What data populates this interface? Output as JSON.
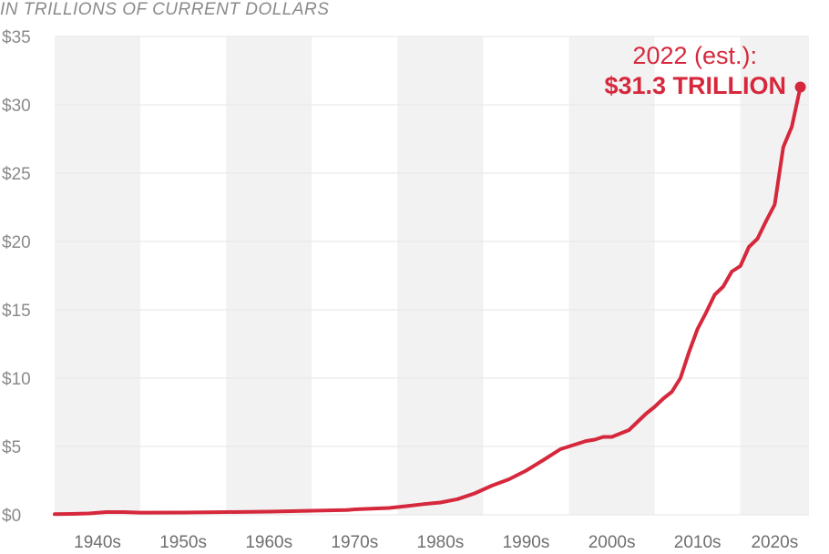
{
  "subtitle": "IN TRILLIONS OF CURRENT DOLLARS",
  "colors": {
    "line": "#d6283c",
    "band": "#f2f2f2",
    "grid": "#e6e6e6",
    "axis_text": "#8a8a8a"
  },
  "chart_data": {
    "type": "line",
    "title": "",
    "subtitle": "IN TRILLIONS OF CURRENT DOLLARS",
    "xlabel": "",
    "ylabel": "",
    "xlim": [
      1935,
      2023
    ],
    "ylim": [
      0,
      35
    ],
    "grid": true,
    "legend": "none",
    "y_ticks": [
      {
        "value": 0,
        "label": "$0"
      },
      {
        "value": 5,
        "label": "$5"
      },
      {
        "value": 10,
        "label": "$10"
      },
      {
        "value": 15,
        "label": "$15"
      },
      {
        "value": 20,
        "label": "$20"
      },
      {
        "value": 25,
        "label": "$25"
      },
      {
        "value": 30,
        "label": "$30"
      },
      {
        "value": 35,
        "label": "$35"
      }
    ],
    "decades": [
      {
        "label": "1940s",
        "start": 1935,
        "end": 1945
      },
      {
        "label": "1950s",
        "start": 1945,
        "end": 1955
      },
      {
        "label": "1960s",
        "start": 1955,
        "end": 1965
      },
      {
        "label": "1970s",
        "start": 1965,
        "end": 1975
      },
      {
        "label": "1980s",
        "start": 1975,
        "end": 1985
      },
      {
        "label": "1990s",
        "start": 1985,
        "end": 1995
      },
      {
        "label": "2000s",
        "start": 1995,
        "end": 2005
      },
      {
        "label": "2010s",
        "start": 2005,
        "end": 2015
      },
      {
        "label": "2020s",
        "start": 2015,
        "end": 2023
      }
    ],
    "x": [
      1935,
      1937,
      1939,
      1941,
      1943,
      1945,
      1950,
      1955,
      1960,
      1965,
      1969,
      1970,
      1972,
      1974,
      1976,
      1978,
      1979,
      1980,
      1982,
      1984,
      1986,
      1988,
      1990,
      1992,
      1994,
      1995,
      1996,
      1997,
      1998,
      1999,
      2000,
      2002,
      2004,
      2005,
      2006,
      2007,
      2008,
      2009,
      2010,
      2011,
      2012,
      2013,
      2014,
      2015,
      2016,
      2017,
      2018,
      2019,
      2020,
      2021,
      2022
    ],
    "values": [
      0.05,
      0.07,
      0.1,
      0.2,
      0.2,
      0.16,
      0.17,
      0.2,
      0.23,
      0.3,
      0.35,
      0.4,
      0.45,
      0.5,
      0.63,
      0.78,
      0.84,
      0.9,
      1.15,
      1.57,
      2.13,
      2.6,
      3.23,
      4.0,
      4.8,
      5.0,
      5.2,
      5.4,
      5.5,
      5.7,
      5.7,
      6.2,
      7.4,
      7.9,
      8.5,
      9.0,
      10.0,
      11.9,
      13.6,
      14.8,
      16.1,
      16.7,
      17.8,
      18.2,
      19.6,
      20.2,
      21.5,
      22.7,
      26.9,
      28.4,
      31.3
    ],
    "annotations": [
      {
        "year": 2022,
        "value": 31.3,
        "line1": "2022 (est.):",
        "line2": "$31.3 TRILLION"
      }
    ]
  }
}
